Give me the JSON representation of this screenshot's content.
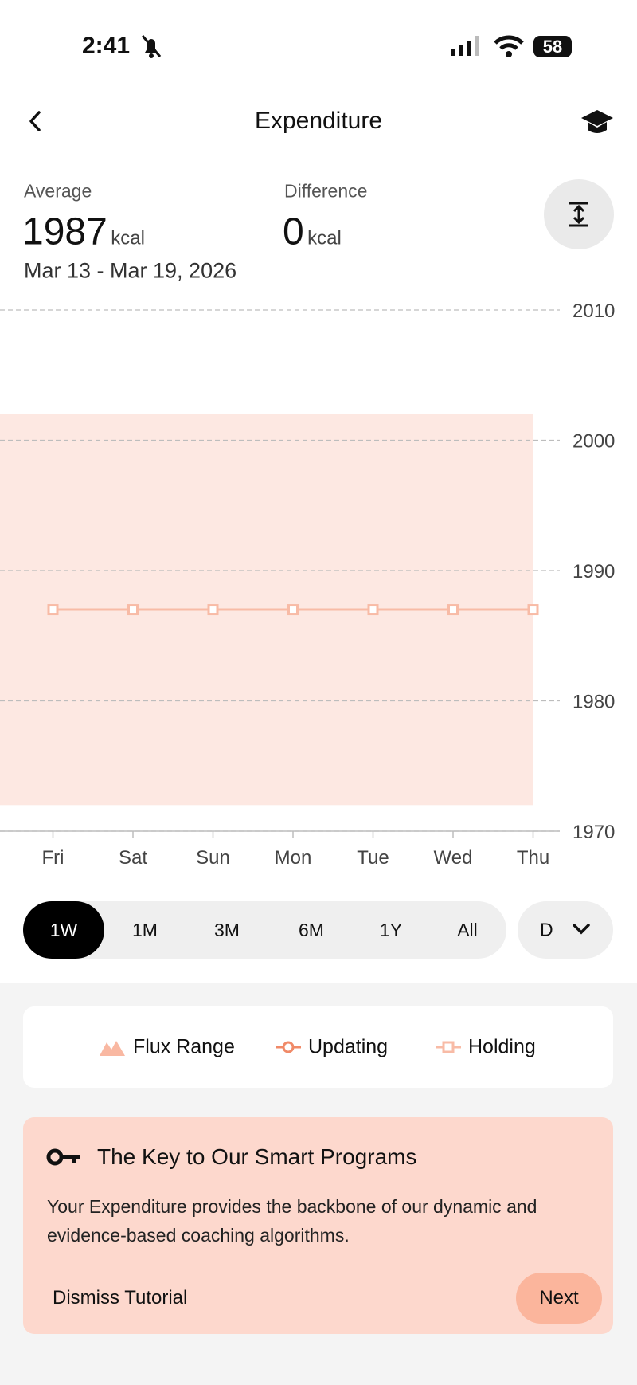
{
  "status_bar": {
    "time": "2:41",
    "battery": "58"
  },
  "header": {
    "title": "Expenditure"
  },
  "summary": {
    "average_label": "Average",
    "average_value": "1987",
    "average_unit": "kcal",
    "difference_label": "Difference",
    "difference_value": "0",
    "difference_unit": "kcal",
    "date_range": "Mar 13 - Mar 19, 2026"
  },
  "chart_data": {
    "type": "line",
    "categories": [
      "Fri",
      "Sat",
      "Sun",
      "Mon",
      "Tue",
      "Wed",
      "Thu"
    ],
    "range": {
      "name": "Flux Range",
      "color": "#fde8e2",
      "low": [
        1972,
        1972,
        1972,
        1972,
        1972,
        1972,
        1972
      ],
      "high": [
        2002,
        2002,
        2002,
        2002,
        2002,
        2002,
        2002
      ]
    },
    "series": [
      {
        "name": "Updating",
        "color": "#f08a68",
        "values": [
          null,
          null,
          null,
          null,
          null,
          null,
          null
        ]
      },
      {
        "name": "Holding",
        "color": "#f8bba6",
        "values": [
          1987,
          1987,
          1987,
          1987,
          1987,
          1987,
          1987
        ]
      }
    ],
    "ylim": [
      1970,
      2010
    ],
    "yticks": [
      1970,
      1980,
      1990,
      2000,
      2010
    ],
    "grid": true
  },
  "timeframes": {
    "options": [
      "1W",
      "1M",
      "3M",
      "6M",
      "1Y",
      "All"
    ],
    "selected": 0
  },
  "resolution": "D",
  "tutorial": {
    "title": "The Key to Our Smart Programs",
    "body": "Your Expenditure provides the backbone of our dynamic and evidence-based coaching algorithms.",
    "dismiss": "Dismiss Tutorial",
    "next": "Next"
  }
}
